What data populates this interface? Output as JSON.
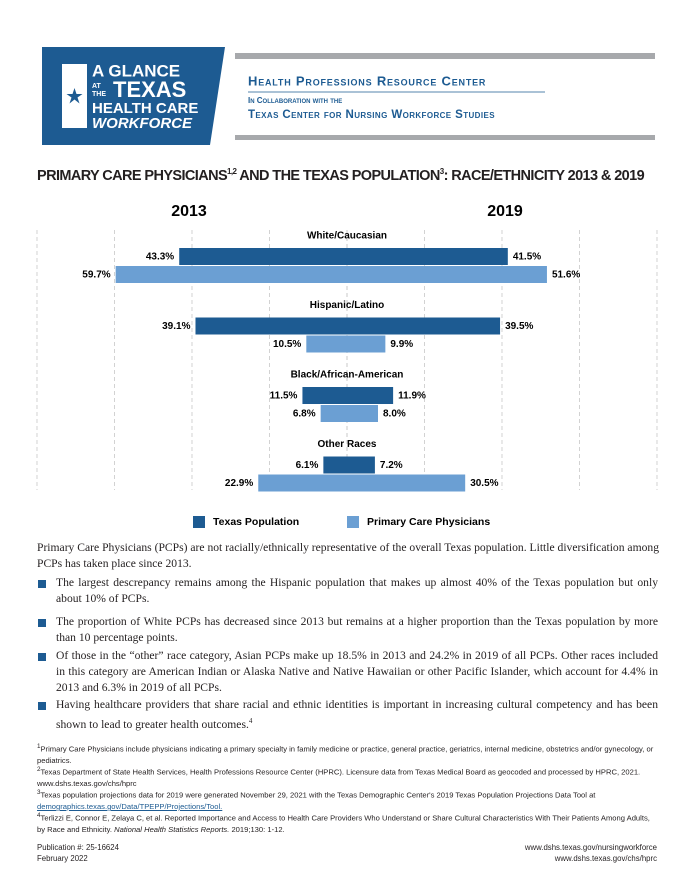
{
  "header": {
    "logo": [
      "A GLANCE",
      "AT",
      "THE",
      "TEXAS",
      "HEALTH CARE",
      "WORKFORCE"
    ],
    "org": "Health Professions Resource Center",
    "collab": "In Collaboration with the",
    "partner": "Texas Center for Nursing Workforce Studies"
  },
  "title": [
    "PRIMARY CARE PHYSICIANS",
    "1,2",
    " AND THE TEXAS POPULATION",
    "3",
    ": RACE/ETHNICITY 2013 & 2019"
  ],
  "chart_data": {
    "type": "butterfly",
    "categories": [
      "White/Caucasian",
      "Hispanic/Latino",
      "Black/African-American",
      "Other Races"
    ],
    "xlim": [
      0,
      80
    ],
    "xticks": [
      0,
      20,
      40,
      60,
      80
    ],
    "grid": true,
    "series": [
      {
        "name": "Texas Population",
        "color": "#1d5b92"
      },
      {
        "name": "Primary Care Physicians",
        "color": "#6b9fd3"
      }
    ],
    "panels": [
      {
        "title": "2013",
        "side": "left",
        "series": [
          {
            "values": [
              43.3,
              39.1,
              11.5,
              6.1
            ],
            "value_labels": [
              "43.3%",
              "39.1%",
              "11.5%",
              "6.1%"
            ]
          },
          {
            "values": [
              59.7,
              10.5,
              6.8,
              22.9
            ],
            "value_labels": [
              "59.7%",
              "10.5%",
              "6.8%",
              "22.9%"
            ]
          }
        ]
      },
      {
        "title": "2019",
        "side": "right",
        "series": [
          {
            "values": [
              41.5,
              39.5,
              11.9,
              7.2
            ],
            "value_labels": [
              "41.5%",
              "39.5%",
              "11.9%",
              "7.2%"
            ]
          },
          {
            "values": [
              51.6,
              9.9,
              8.0,
              30.5
            ],
            "value_labels": [
              "51.6%",
              "9.9%",
              "8.0%",
              "30.5%"
            ]
          }
        ]
      }
    ]
  },
  "body": {
    "intro": "Primary Care Physicians (PCPs) are not racially/ethnically representative of the overall Texas population. Little diversification among PCPs has taken place since 2013.",
    "bullets": [
      {
        "text": "The largest descrepancy remains among the Hispanic population that makes up almost 40% of the Texas population but only about 10% of PCPs."
      },
      {
        "text": "The proportion of White PCPs has decreased since 2013 but remains at a higher proportion than the Texas population by more than 10 percentage points."
      },
      {
        "text": "Of those in the “other” race category, Asian PCPs make up 18.5% in 2013 and 24.2% in 2019 of all PCPs. Other races included in this category are American Indian or Alaska Native and Native Hawaiian or other Pacific Islander, which account for 4.4% in 2013 and 6.3% in 2019 of all PCPs."
      },
      {
        "text": "Having healthcare providers that share racial and ethnic identities is important in increasing cultural competency and has been shown to lead to greater health outcomes.",
        "sup": "4"
      }
    ]
  },
  "footnotes": [
    {
      "mark": "1",
      "text": "Primary Care Physicians include physicians indicating a primary specialty in family medicine or practice, general practice, geriatrics, internal medicine, obstetrics and/or gynecology, or pediatrics."
    },
    {
      "mark": "2",
      "text": "Texas Department of State Health Services, Health Professions Resource Center (HPRC). Licensure data from Texas Medical Board as geocoded and processed by HPRC, 2021. www.dshs.texas.gov/chs/hprc"
    },
    {
      "mark": "3",
      "text": "Texas population projections data for 2019 were generated November 29, 2021 with the Texas Demographic Center's 2019 Texas Population Projections Data Tool at ",
      "link": "demographics.texas.gov/Data/TPEPP/Projections/Tool."
    },
    {
      "mark": "4",
      "text": "Terlizzi E, Connor E, Zelaya C, et al. Reported Importance and Access to Health Care Providers Who Understand or Share Cultural Characteristics With Their Patients Among Adults, by Race and Ethnicity. ",
      "italic": "National Health Statistics Reports.",
      "tail": " 2019;130: 1-12."
    }
  ],
  "footer": {
    "publication": "Publication #: 25-16624",
    "date": "February 2022",
    "url1": "www.dshs.texas.gov/nursingworkforce",
    "url2": "www.dshs.texas.gov/chs/hprc"
  }
}
